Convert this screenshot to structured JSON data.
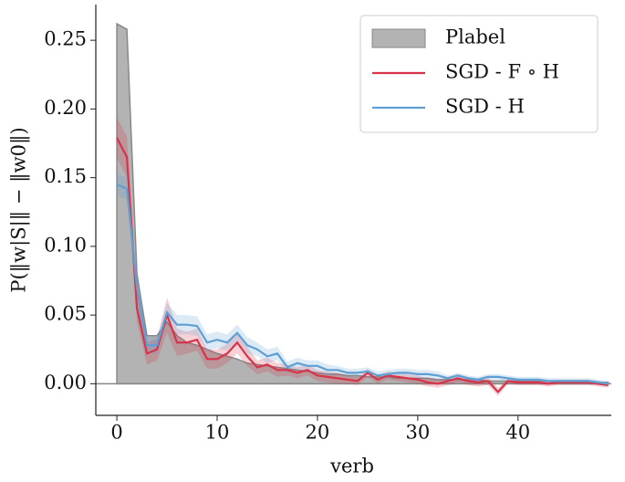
{
  "chart_data": {
    "type": "line",
    "x_label": "verb",
    "y_label": "P(‖w|S|‖ − ‖w0‖)",
    "x": [
      0,
      1,
      2,
      3,
      4,
      5,
      6,
      7,
      8,
      9,
      10,
      11,
      12,
      13,
      14,
      15,
      16,
      17,
      18,
      19,
      20,
      21,
      22,
      23,
      24,
      25,
      26,
      27,
      28,
      29,
      30,
      31,
      32,
      33,
      34,
      35,
      36,
      37,
      38,
      39,
      40,
      41,
      42,
      43,
      44,
      45,
      46,
      47,
      48,
      49
    ],
    "area": {
      "name": "Plabel",
      "color": "#999999",
      "values": [
        0.262,
        0.258,
        0.08,
        0.035,
        0.035,
        0.045,
        0.035,
        0.03,
        0.028,
        0.025,
        0.022,
        0.02,
        0.018,
        0.015,
        0.014,
        0.013,
        0.012,
        0.011,
        0.01,
        0.009,
        0.008,
        0.007,
        0.007,
        0.006,
        0.006,
        0.005,
        0.005,
        0.005,
        0.004,
        0.004,
        0.004,
        0.004,
        0.003,
        0.003,
        0.003,
        0.003,
        0.003,
        0.002,
        0.002,
        0.002,
        0.002,
        0.002,
        0.002,
        0.002,
        0.001,
        0.001,
        0.001,
        0.001,
        0.001,
        0.001
      ]
    },
    "series": [
      {
        "name": "SGD - F ∘ H",
        "color": "#d7344a",
        "values": [
          0.179,
          0.165,
          0.055,
          0.022,
          0.025,
          0.05,
          0.03,
          0.03,
          0.032,
          0.018,
          0.018,
          0.022,
          0.03,
          0.02,
          0.012,
          0.014,
          0.01,
          0.01,
          0.008,
          0.01,
          0.006,
          0.005,
          0.004,
          0.003,
          0.002,
          0.008,
          0.003,
          0.006,
          0.005,
          0.004,
          0.003,
          0.001,
          0.0,
          0.002,
          0.004,
          0.002,
          0.001,
          0.002,
          -0.006,
          0.002,
          0.001,
          0.001,
          0.001,
          0.0,
          0.001,
          0.001,
          0.001,
          0.001,
          0.0,
          -0.001
        ],
        "errors": [
          0.015,
          0.015,
          0.01,
          0.008,
          0.008,
          0.013,
          0.01,
          0.008,
          0.008,
          0.007,
          0.007,
          0.007,
          0.008,
          0.007,
          0.005,
          0.005,
          0.005,
          0.004,
          0.004,
          0.004,
          0.004,
          0.004,
          0.004,
          0.003,
          0.003,
          0.003,
          0.003,
          0.003,
          0.003,
          0.003,
          0.003,
          0.003,
          0.003,
          0.003,
          0.003,
          0.003,
          0.003,
          0.003,
          0.003,
          0.002,
          0.002,
          0.002,
          0.002,
          0.002,
          0.002,
          0.002,
          0.002,
          0.002,
          0.002,
          0.002
        ]
      },
      {
        "name": "SGD - H",
        "color": "#5f9fd4",
        "values": [
          0.145,
          0.142,
          0.07,
          0.028,
          0.028,
          0.052,
          0.043,
          0.043,
          0.042,
          0.03,
          0.032,
          0.03,
          0.037,
          0.028,
          0.025,
          0.02,
          0.022,
          0.012,
          0.015,
          0.013,
          0.013,
          0.01,
          0.01,
          0.008,
          0.008,
          0.009,
          0.006,
          0.007,
          0.008,
          0.008,
          0.007,
          0.007,
          0.006,
          0.004,
          0.006,
          0.004,
          0.003,
          0.005,
          0.005,
          0.004,
          0.003,
          0.003,
          0.003,
          0.002,
          0.002,
          0.002,
          0.002,
          0.002,
          0.001,
          0.0
        ],
        "errors": [
          0.008,
          0.008,
          0.008,
          0.006,
          0.006,
          0.007,
          0.007,
          0.007,
          0.007,
          0.006,
          0.006,
          0.006,
          0.006,
          0.006,
          0.005,
          0.005,
          0.005,
          0.004,
          0.004,
          0.004,
          0.004,
          0.004,
          0.003,
          0.003,
          0.003,
          0.003,
          0.003,
          0.003,
          0.003,
          0.003,
          0.003,
          0.003,
          0.003,
          0.002,
          0.002,
          0.002,
          0.002,
          0.002,
          0.002,
          0.002,
          0.002,
          0.002,
          0.002,
          0.002,
          0.002,
          0.002,
          0.002,
          0.002,
          0.002,
          0.002
        ]
      }
    ],
    "xlim": [
      -2.1,
      49.3
    ],
    "ylim": [
      -0.023,
      0.276
    ],
    "xticks": [
      0,
      10,
      20,
      30,
      40
    ],
    "yticks": [
      {
        "value": 0,
        "label": "0.00"
      },
      0.05,
      {
        "value": 0.1,
        "label": "0.10"
      },
      0.15,
      {
        "value": 0.2,
        "label": "0.20"
      },
      0.25
    ],
    "legend": "upper right"
  }
}
